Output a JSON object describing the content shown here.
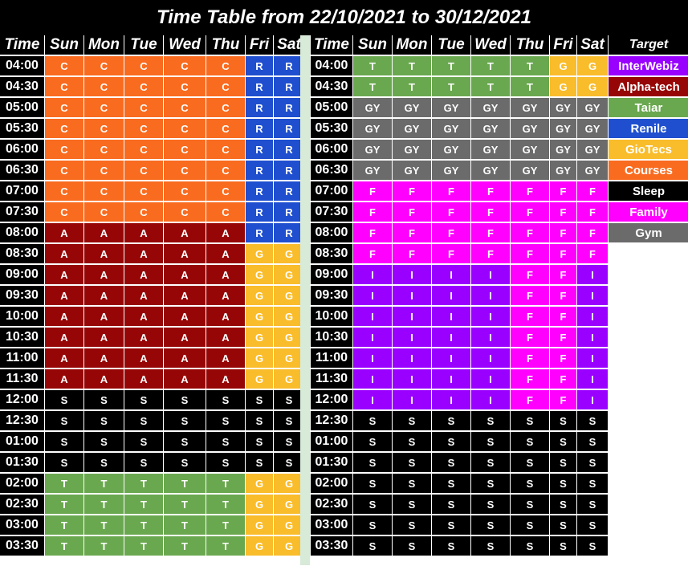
{
  "title": "Time Table from 22/10/2021 to 30/12/2021",
  "headers": {
    "time": "Time",
    "days": [
      "Sun",
      "Mon",
      "Tue",
      "Wed",
      "Thu",
      "Fri",
      "Sat"
    ],
    "target": "Target"
  },
  "colors": {
    "C": "#f96b1f",
    "R": "#1f4fcf",
    "A": "#960606",
    "G": "#f9bc2b",
    "S": "#000000",
    "T": "#6aa84f",
    "GY": "#6b6b6b",
    "F": "#ff00ff",
    "I": "#9900ff"
  },
  "legend": [
    {
      "label": "InterWebiz",
      "color": "#9900ff"
    },
    {
      "label": "Alpha-tech",
      "color": "#960606"
    },
    {
      "label": "Taiar",
      "color": "#6aa84f"
    },
    {
      "label": "Renile",
      "color": "#1f4fcf"
    },
    {
      "label": "GioTecs",
      "color": "#f9bc2b"
    },
    {
      "label": "Courses",
      "color": "#f96b1f"
    },
    {
      "label": "Sleep",
      "color": "#000000"
    },
    {
      "label": "Family",
      "color": "#ff00ff"
    },
    {
      "label": "Gym",
      "color": "#6b6b6b"
    }
  ],
  "left_rows": [
    {
      "time": "04:00",
      "cells": [
        "C",
        "C",
        "C",
        "C",
        "C",
        "R",
        "R"
      ]
    },
    {
      "time": "04:30",
      "cells": [
        "C",
        "C",
        "C",
        "C",
        "C",
        "R",
        "R"
      ]
    },
    {
      "time": "05:00",
      "cells": [
        "C",
        "C",
        "C",
        "C",
        "C",
        "R",
        "R"
      ]
    },
    {
      "time": "05:30",
      "cells": [
        "C",
        "C",
        "C",
        "C",
        "C",
        "R",
        "R"
      ]
    },
    {
      "time": "06:00",
      "cells": [
        "C",
        "C",
        "C",
        "C",
        "C",
        "R",
        "R"
      ]
    },
    {
      "time": "06:30",
      "cells": [
        "C",
        "C",
        "C",
        "C",
        "C",
        "R",
        "R"
      ]
    },
    {
      "time": "07:00",
      "cells": [
        "C",
        "C",
        "C",
        "C",
        "C",
        "R",
        "R"
      ]
    },
    {
      "time": "07:30",
      "cells": [
        "C",
        "C",
        "C",
        "C",
        "C",
        "R",
        "R"
      ]
    },
    {
      "time": "08:00",
      "cells": [
        "A",
        "A",
        "A",
        "A",
        "A",
        "R",
        "R"
      ]
    },
    {
      "time": "08:30",
      "cells": [
        "A",
        "A",
        "A",
        "A",
        "A",
        "G",
        "G"
      ]
    },
    {
      "time": "09:00",
      "cells": [
        "A",
        "A",
        "A",
        "A",
        "A",
        "G",
        "G"
      ]
    },
    {
      "time": "09:30",
      "cells": [
        "A",
        "A",
        "A",
        "A",
        "A",
        "G",
        "G"
      ]
    },
    {
      "time": "10:00",
      "cells": [
        "A",
        "A",
        "A",
        "A",
        "A",
        "G",
        "G"
      ]
    },
    {
      "time": "10:30",
      "cells": [
        "A",
        "A",
        "A",
        "A",
        "A",
        "G",
        "G"
      ]
    },
    {
      "time": "11:00",
      "cells": [
        "A",
        "A",
        "A",
        "A",
        "A",
        "G",
        "G"
      ]
    },
    {
      "time": "11:30",
      "cells": [
        "A",
        "A",
        "A",
        "A",
        "A",
        "G",
        "G"
      ]
    },
    {
      "time": "12:00",
      "cells": [
        "S",
        "S",
        "S",
        "S",
        "S",
        "S",
        "S"
      ]
    },
    {
      "time": "12:30",
      "cells": [
        "S",
        "S",
        "S",
        "S",
        "S",
        "S",
        "S"
      ]
    },
    {
      "time": "01:00",
      "cells": [
        "S",
        "S",
        "S",
        "S",
        "S",
        "S",
        "S"
      ]
    },
    {
      "time": "01:30",
      "cells": [
        "S",
        "S",
        "S",
        "S",
        "S",
        "S",
        "S"
      ]
    },
    {
      "time": "02:00",
      "cells": [
        "T",
        "T",
        "T",
        "T",
        "T",
        "G",
        "G"
      ]
    },
    {
      "time": "02:30",
      "cells": [
        "T",
        "T",
        "T",
        "T",
        "T",
        "G",
        "G"
      ]
    },
    {
      "time": "03:00",
      "cells": [
        "T",
        "T",
        "T",
        "T",
        "T",
        "G",
        "G"
      ]
    },
    {
      "time": "03:30",
      "cells": [
        "T",
        "T",
        "T",
        "T",
        "T",
        "G",
        "G"
      ]
    }
  ],
  "right_rows": [
    {
      "time": "04:00",
      "cells": [
        "T",
        "T",
        "T",
        "T",
        "T",
        "G",
        "G"
      ]
    },
    {
      "time": "04:30",
      "cells": [
        "T",
        "T",
        "T",
        "T",
        "T",
        "G",
        "G"
      ]
    },
    {
      "time": "05:00",
      "cells": [
        "GY",
        "GY",
        "GY",
        "GY",
        "GY",
        "GY",
        "GY"
      ]
    },
    {
      "time": "05:30",
      "cells": [
        "GY",
        "GY",
        "GY",
        "GY",
        "GY",
        "GY",
        "GY"
      ]
    },
    {
      "time": "06:00",
      "cells": [
        "GY",
        "GY",
        "GY",
        "GY",
        "GY",
        "GY",
        "GY"
      ]
    },
    {
      "time": "06:30",
      "cells": [
        "GY",
        "GY",
        "GY",
        "GY",
        "GY",
        "GY",
        "GY"
      ]
    },
    {
      "time": "07:00",
      "cells": [
        "F",
        "F",
        "F",
        "F",
        "F",
        "F",
        "F"
      ]
    },
    {
      "time": "07:30",
      "cells": [
        "F",
        "F",
        "F",
        "F",
        "F",
        "F",
        "F"
      ]
    },
    {
      "time": "08:00",
      "cells": [
        "F",
        "F",
        "F",
        "F",
        "F",
        "F",
        "F"
      ]
    },
    {
      "time": "08:30",
      "cells": [
        "F",
        "F",
        "F",
        "F",
        "F",
        "F",
        "F"
      ]
    },
    {
      "time": "09:00",
      "cells": [
        "I",
        "I",
        "I",
        "I",
        "F",
        "F",
        "I"
      ]
    },
    {
      "time": "09:30",
      "cells": [
        "I",
        "I",
        "I",
        "I",
        "F",
        "F",
        "I"
      ]
    },
    {
      "time": "10:00",
      "cells": [
        "I",
        "I",
        "I",
        "I",
        "F",
        "F",
        "I"
      ]
    },
    {
      "time": "10:30",
      "cells": [
        "I",
        "I",
        "I",
        "I",
        "F",
        "F",
        "I"
      ]
    },
    {
      "time": "11:00",
      "cells": [
        "I",
        "I",
        "I",
        "I",
        "F",
        "F",
        "I"
      ]
    },
    {
      "time": "11:30",
      "cells": [
        "I",
        "I",
        "I",
        "I",
        "F",
        "F",
        "I"
      ]
    },
    {
      "time": "12:00",
      "cells": [
        "I",
        "I",
        "I",
        "I",
        "F",
        "F",
        "I"
      ]
    },
    {
      "time": "12:30",
      "cells": [
        "S",
        "S",
        "S",
        "S",
        "S",
        "S",
        "S"
      ]
    },
    {
      "time": "01:00",
      "cells": [
        "S",
        "S",
        "S",
        "S",
        "S",
        "S",
        "S"
      ]
    },
    {
      "time": "01:30",
      "cells": [
        "S",
        "S",
        "S",
        "S",
        "S",
        "S",
        "S"
      ]
    },
    {
      "time": "02:00",
      "cells": [
        "S",
        "S",
        "S",
        "S",
        "S",
        "S",
        "S"
      ]
    },
    {
      "time": "02:30",
      "cells": [
        "S",
        "S",
        "S",
        "S",
        "S",
        "S",
        "S"
      ]
    },
    {
      "time": "03:00",
      "cells": [
        "S",
        "S",
        "S",
        "S",
        "S",
        "S",
        "S"
      ]
    },
    {
      "time": "03:30",
      "cells": [
        "S",
        "S",
        "S",
        "S",
        "S",
        "S",
        "S"
      ]
    }
  ]
}
